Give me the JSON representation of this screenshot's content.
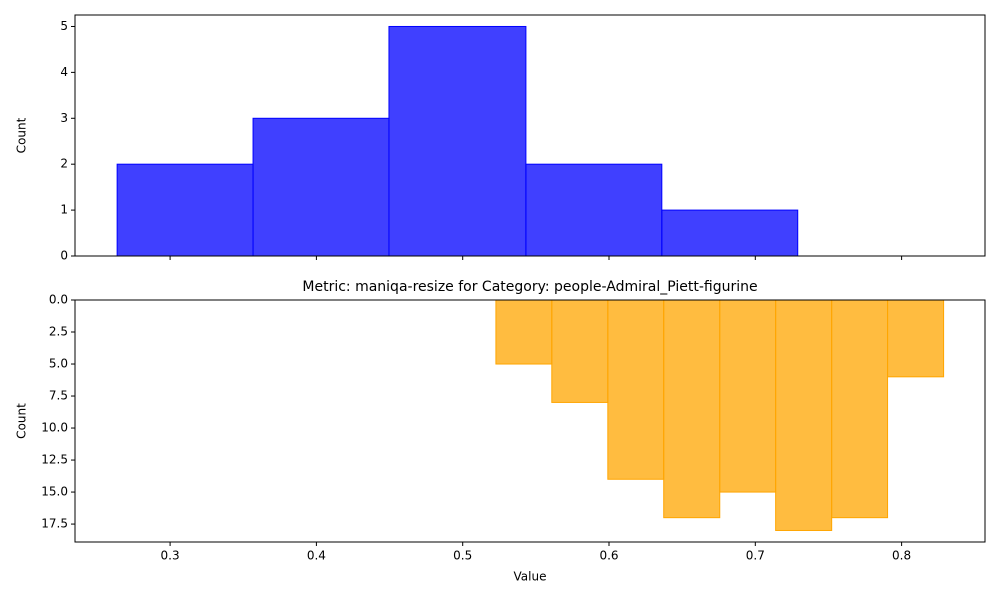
{
  "chart_data": [
    {
      "type": "histogram",
      "bins": [
        0.2638,
        0.3567,
        0.4496,
        0.5432,
        0.6361,
        0.729
      ],
      "counts": [
        2,
        3,
        5,
        2,
        1
      ],
      "color": "blue",
      "alpha": 0.75,
      "ylabel": "Count",
      "xlim": [
        0.235,
        0.857
      ],
      "xticks": [
        0.3,
        0.4,
        0.5,
        0.6,
        0.7,
        0.8
      ],
      "ylim": [
        0,
        5.25
      ],
      "yticks": [
        0,
        1,
        2,
        3,
        4,
        5
      ]
    },
    {
      "type": "histogram",
      "title": "Metric: maniqa-resize for Category: people-Admiral_Piett-figurine",
      "bins": [
        0.5227,
        0.5609,
        0.5992,
        0.6374,
        0.6757,
        0.7139,
        0.7522,
        0.7904,
        0.8287
      ],
      "counts": [
        5,
        8,
        14,
        17,
        15,
        18,
        17,
        6
      ],
      "color": "orange",
      "alpha": 0.75,
      "xlabel": "Value",
      "ylabel": "Count",
      "inverted_y": true,
      "xlim": [
        0.235,
        0.857
      ],
      "xticks": [
        0.3,
        0.4,
        0.5,
        0.6,
        0.7,
        0.8
      ],
      "ylim": [
        0,
        18.9
      ],
      "yticks": [
        {
          "value": 0,
          "label": "0.0"
        },
        {
          "value": 2.5,
          "label": "2.5"
        },
        {
          "value": 5,
          "label": "5.0"
        },
        {
          "value": 7.5,
          "label": "7.5"
        },
        {
          "value": 10,
          "label": "10.0"
        },
        {
          "value": 12.5,
          "label": "12.5"
        },
        {
          "value": 15,
          "label": "15.0"
        },
        {
          "value": 17.5,
          "label": "17.5"
        }
      ]
    }
  ]
}
